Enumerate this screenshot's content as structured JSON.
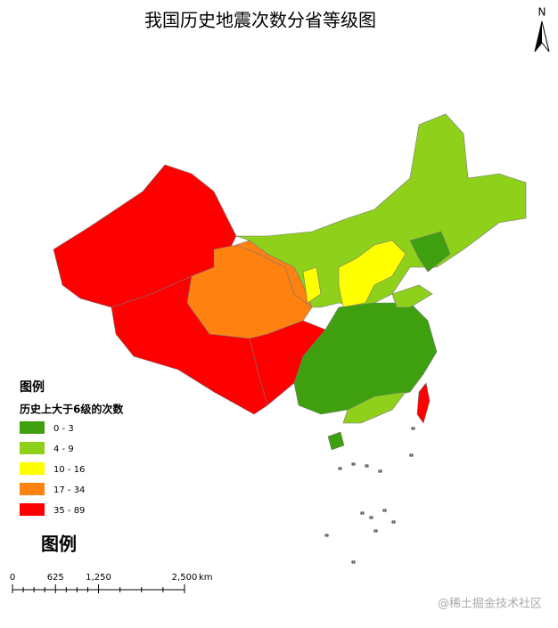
{
  "title": "我国历史地震次数分省等级图",
  "north_arrow": "N",
  "legend": {
    "title": "图例",
    "subtitle": "历史上大于6级的次数",
    "classes": [
      {
        "label": "0 - 3",
        "color": "#3ea00f"
      },
      {
        "label": "4 - 9",
        "color": "#8fd11a"
      },
      {
        "label": "10 - 16",
        "color": "#ffff00"
      },
      {
        "label": "17 - 34",
        "color": "#ff8210"
      },
      {
        "label": "35 - 89",
        "color": "#ff0000"
      }
    ]
  },
  "legend_caption": "图例",
  "scale_bar": {
    "ticks": [
      {
        "value": 0,
        "label": "0"
      },
      {
        "value": 625,
        "label": "625"
      },
      {
        "value": 1250,
        "label": "1,250"
      },
      {
        "value": 2500,
        "label": "2,500"
      }
    ],
    "unit": "km"
  },
  "watermark": "@稀土掘金技术社区"
}
